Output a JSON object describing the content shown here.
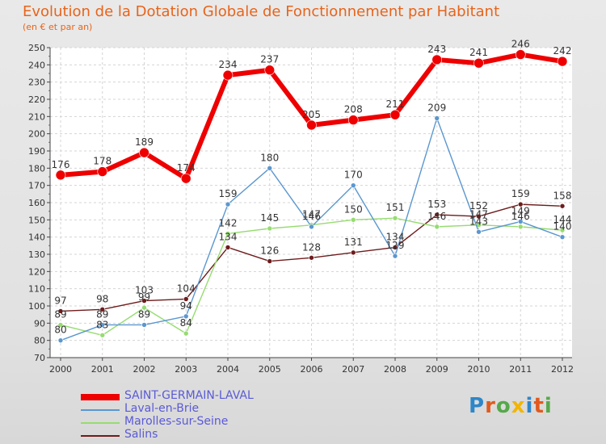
{
  "title": "Evolution de la Dotation Globale de Fonctionnement par Habitant",
  "subtitle": "(en € et par an)",
  "brand": [
    "P",
    "r",
    "o",
    "x",
    "i",
    "t",
    "i"
  ],
  "brand_colors": [
    "#2e86c8",
    "#e05a1e",
    "#56a84a",
    "#f2b500",
    "#2e86c8",
    "#e05a1e",
    "#56a84a"
  ],
  "chart_data": {
    "type": "line",
    "x": [
      2000,
      2001,
      2002,
      2003,
      2004,
      2005,
      2006,
      2007,
      2008,
      2009,
      2010,
      2011,
      2012
    ],
    "ylim": [
      70,
      250
    ],
    "yticks": [
      70,
      80,
      90,
      100,
      110,
      120,
      130,
      140,
      150,
      160,
      170,
      180,
      190,
      200,
      210,
      220,
      230,
      240,
      250
    ],
    "grid": true,
    "legend_position": "bottom-left",
    "series": [
      {
        "name": "SAINT-GERMAIN-LAVAL",
        "color": "#ee0000",
        "values": [
          176,
          178,
          189,
          174,
          234,
          237,
          205,
          208,
          211,
          243,
          241,
          246,
          242
        ],
        "labels": [
          "176",
          "178",
          "189",
          "174",
          "234",
          "237",
          "205",
          "208",
          "211",
          "243",
          "241",
          "246",
          "242"
        ]
      },
      {
        "name": "Laval-en-Brie",
        "color": "#5b97cf",
        "values": [
          80,
          89,
          89,
          94,
          159,
          180,
          146,
          170,
          129,
          209,
          143,
          149,
          140
        ],
        "labels": [
          "80",
          "89",
          "89",
          "94",
          "159",
          "180",
          "146",
          "170",
          "129",
          "209",
          "143",
          "149",
          "140"
        ]
      },
      {
        "name": "Marolles-sur-Seine",
        "color": "#96dc70",
        "values": [
          89,
          83,
          99,
          84,
          142,
          145,
          147,
          150,
          151,
          146,
          147,
          146,
          144
        ],
        "labels": [
          "89",
          "83",
          "99",
          "84",
          "142",
          "145",
          "147",
          "150",
          "151",
          "146",
          "147",
          "146",
          "144"
        ]
      },
      {
        "name": "Salins",
        "color": "#6e1c1c",
        "values": [
          97,
          98,
          103,
          104,
          134,
          126,
          128,
          131,
          134,
          153,
          152,
          159,
          158
        ],
        "labels": [
          "97",
          "98",
          "103",
          "104",
          "134",
          "126",
          "128",
          "131",
          "134",
          "153",
          "152",
          "159",
          "158"
        ]
      }
    ]
  }
}
